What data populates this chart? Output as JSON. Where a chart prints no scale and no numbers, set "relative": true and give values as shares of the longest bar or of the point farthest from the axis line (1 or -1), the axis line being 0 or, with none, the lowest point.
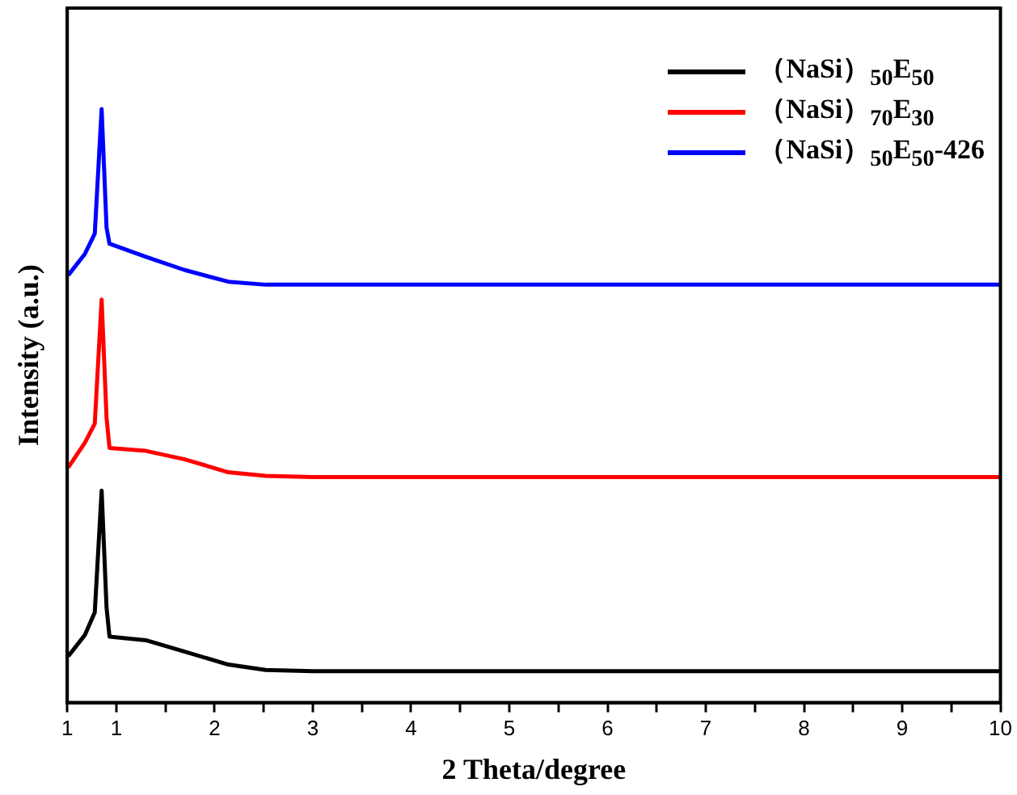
{
  "chart_data": {
    "type": "line",
    "xlabel": "2 Theta/degree",
    "ylabel": "Intensity (a.u.)",
    "relative": true,
    "xlim": [
      0.5,
      10
    ],
    "xticks": [
      {
        "value": 0.5,
        "label": "1"
      },
      1,
      {
        "value": 1.5,
        "label": null
      },
      2,
      {
        "value": 2.5,
        "label": null
      },
      3,
      {
        "value": 3.5,
        "label": null
      },
      4,
      {
        "value": 4.5,
        "label": null
      },
      5,
      {
        "value": 5.5,
        "label": null
      },
      6,
      {
        "value": 6.5,
        "label": null
      },
      7,
      {
        "value": 7.5,
        "label": null
      },
      8,
      {
        "value": 8.5,
        "label": null
      },
      9,
      {
        "value": 9.5,
        "label": null
      },
      10
    ],
    "x": [
      0.51,
      0.68,
      0.78,
      0.85,
      0.9,
      0.93,
      1.3,
      1.69,
      2.14,
      2.52,
      3,
      5,
      10
    ],
    "series": [
      {
        "name": "（NaSi）$_{50}$E$_{50}$",
        "color": "#000000",
        "values": [
          0.078,
          0.114,
          0.152,
          0.357,
          0.16,
          0.111,
          0.105,
          0.086,
          0.064,
          0.055,
          0.053,
          0.053,
          0.053
        ]
      },
      {
        "name": "（NaSi）$_{70}$E$_{30}$",
        "color": "#ff0000",
        "values": [
          0.396,
          0.438,
          0.47,
          0.679,
          0.48,
          0.429,
          0.424,
          0.41,
          0.388,
          0.382,
          0.38,
          0.38,
          0.38
        ]
      },
      {
        "name": "（NaSi）$_{50}$E$_{50}$-426",
        "color": "#0000ff",
        "values": [
          0.72,
          0.756,
          0.79,
          1,
          0.8,
          0.773,
          0.751,
          0.729,
          0.709,
          0.704,
          0.704,
          0.704,
          0.704
        ]
      }
    ],
    "legend": "top right",
    "grid": false,
    "marker": "none",
    "line_style": "solid"
  }
}
